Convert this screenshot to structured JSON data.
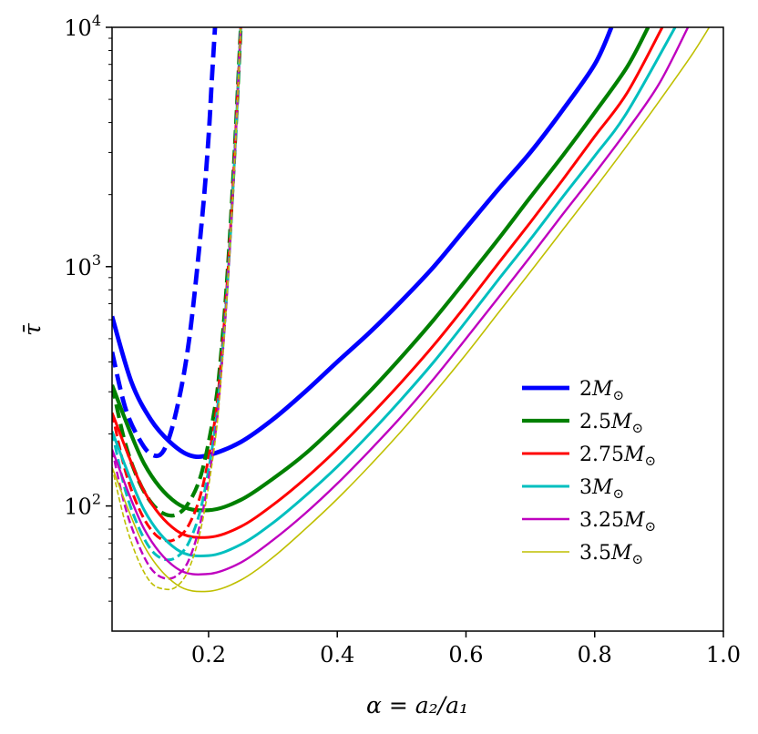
{
  "chart_data": {
    "type": "line",
    "title": "",
    "xlabel": "α = a₂/a₁",
    "ylabel": "τ̄",
    "xlim": [
      0.05,
      1.0
    ],
    "ylim": [
      30,
      10000
    ],
    "yscale": "log",
    "xticks": [
      {
        "value": 0.2,
        "label": "0.2"
      },
      {
        "value": 0.4,
        "label": "0.4"
      },
      {
        "value": 0.6,
        "label": "0.6"
      },
      {
        "value": 0.8,
        "label": "0.8"
      },
      {
        "value": 1.0,
        "label": "1.0"
      }
    ],
    "yticks": [
      {
        "value": 100,
        "base": "10",
        "exp": "2"
      },
      {
        "value": 1000,
        "base": "10",
        "exp": "3"
      },
      {
        "value": 10000,
        "base": "10",
        "exp": "4"
      }
    ],
    "legend_position": "lower-right",
    "series": [
      {
        "name": "2M⊙",
        "label_num": "2",
        "color": "#0000ff",
        "weight": "thickest",
        "solid": {
          "x": [
            0.05,
            0.08,
            0.11,
            0.14,
            0.17,
            0.2,
            0.25,
            0.3,
            0.35,
            0.4,
            0.45,
            0.5,
            0.55,
            0.6,
            0.65,
            0.7,
            0.75,
            0.8,
            0.826
          ],
          "y": [
            620,
            330,
            230,
            185,
            163,
            163,
            185,
            230,
            300,
            400,
            530,
            720,
            1000,
            1450,
            2100,
            3000,
            4500,
            7000,
            10000
          ]
        },
        "dashed": {
          "x": [
            0.05,
            0.07,
            0.09,
            0.11,
            0.13,
            0.15,
            0.17,
            0.19,
            0.2,
            0.205,
            0.21
          ],
          "y": [
            440,
            260,
            195,
            165,
            170,
            250,
            500,
            1600,
            3500,
            6000,
            10000
          ]
        }
      },
      {
        "name": "2.5M⊙",
        "label_num": "2.5",
        "color": "#008000",
        "weight": "thick",
        "solid": {
          "x": [
            0.05,
            0.1,
            0.15,
            0.2,
            0.25,
            0.3,
            0.35,
            0.4,
            0.45,
            0.5,
            0.55,
            0.6,
            0.65,
            0.7,
            0.75,
            0.8,
            0.85,
            0.883
          ],
          "y": [
            320,
            150,
            103,
            96,
            106,
            130,
            165,
            220,
            300,
            420,
            600,
            880,
            1300,
            1950,
            2900,
            4400,
            6800,
            10000
          ]
        },
        "dashed": {
          "x": [
            0.05,
            0.07,
            0.09,
            0.11,
            0.13,
            0.15,
            0.17,
            0.19,
            0.21,
            0.22,
            0.23,
            0.24,
            0.25
          ],
          "y": [
            320,
            185,
            130,
            104,
            93,
            92,
            104,
            140,
            260,
            450,
            1000,
            2900,
            10000
          ]
        }
      },
      {
        "name": "2.75M⊙",
        "label_num": "2.75",
        "color": "#ff0000",
        "weight": "medium",
        "solid": {
          "x": [
            0.05,
            0.1,
            0.15,
            0.2,
            0.25,
            0.3,
            0.35,
            0.4,
            0.45,
            0.5,
            0.55,
            0.6,
            0.65,
            0.7,
            0.75,
            0.8,
            0.85,
            0.905
          ],
          "y": [
            245,
            115,
            79,
            74,
            82,
            101,
            130,
            173,
            237,
            330,
            470,
            690,
            1030,
            1530,
            2300,
            3500,
            5300,
            10000
          ]
        },
        "dashed": {
          "x": [
            0.05,
            0.07,
            0.09,
            0.11,
            0.13,
            0.15,
            0.17,
            0.19,
            0.21,
            0.22,
            0.23,
            0.24,
            0.25
          ],
          "y": [
            245,
            142,
            100,
            80,
            72,
            73,
            84,
            118,
            230,
            420,
            950,
            2800,
            10000
          ]
        }
      },
      {
        "name": "3M⊙",
        "label_num": "3",
        "color": "#00bfbf",
        "weight": "medium",
        "solid": {
          "x": [
            0.05,
            0.1,
            0.15,
            0.2,
            0.25,
            0.3,
            0.35,
            0.4,
            0.45,
            0.5,
            0.55,
            0.6,
            0.65,
            0.7,
            0.75,
            0.8,
            0.85,
            0.925
          ],
          "y": [
            205,
            96,
            66,
            62,
            69,
            85,
            110,
            146,
            200,
            280,
            400,
            590,
            880,
            1300,
            1950,
            2900,
            4400,
            10000
          ]
        },
        "dashed": {
          "x": [
            0.05,
            0.07,
            0.09,
            0.11,
            0.13,
            0.15,
            0.17,
            0.19,
            0.21,
            0.22,
            0.23,
            0.24,
            0.25
          ],
          "y": [
            205,
            118,
            83,
            66,
            60,
            61,
            71,
            103,
            210,
            390,
            900,
            2700,
            10000
          ]
        }
      },
      {
        "name": "3.25M⊙",
        "label_num": "3.25",
        "color": "#bf00bf",
        "weight": "thin",
        "solid": {
          "x": [
            0.05,
            0.1,
            0.15,
            0.2,
            0.25,
            0.3,
            0.35,
            0.4,
            0.45,
            0.5,
            0.55,
            0.6,
            0.65,
            0.7,
            0.75,
            0.8,
            0.85,
            0.9,
            0.945
          ],
          "y": [
            172,
            80,
            55,
            52,
            58,
            72,
            93,
            124,
            170,
            237,
            340,
            500,
            740,
            1100,
            1650,
            2450,
            3700,
            5800,
            10000
          ]
        },
        "dashed": {
          "x": [
            0.05,
            0.07,
            0.09,
            0.11,
            0.13,
            0.15,
            0.17,
            0.19,
            0.21,
            0.22,
            0.23,
            0.24,
            0.25
          ],
          "y": [
            172,
            100,
            70,
            55,
            50,
            51,
            60,
            92,
            195,
            370,
            880,
            2650,
            10000
          ]
        }
      },
      {
        "name": "3.5M⊙",
        "label_num": "3.5",
        "color": "#bfbf00",
        "weight": "thinnest",
        "solid": {
          "x": [
            0.05,
            0.1,
            0.15,
            0.2,
            0.25,
            0.3,
            0.35,
            0.4,
            0.45,
            0.5,
            0.55,
            0.6,
            0.65,
            0.7,
            0.75,
            0.8,
            0.85,
            0.9,
            0.95,
            0.978
          ],
          "y": [
            145,
            68,
            47,
            44,
            49,
            61,
            80,
            107,
            147,
            206,
            295,
            430,
            640,
            950,
            1420,
            2120,
            3200,
            4900,
            7600,
            10000
          ]
        },
        "dashed": {
          "x": [
            0.05,
            0.07,
            0.09,
            0.11,
            0.13,
            0.15,
            0.17,
            0.19,
            0.21,
            0.22,
            0.23,
            0.24,
            0.25
          ],
          "y": [
            145,
            86,
            60,
            48,
            45,
            46,
            55,
            85,
            185,
            360,
            870,
            2600,
            10000
          ]
        }
      }
    ]
  }
}
